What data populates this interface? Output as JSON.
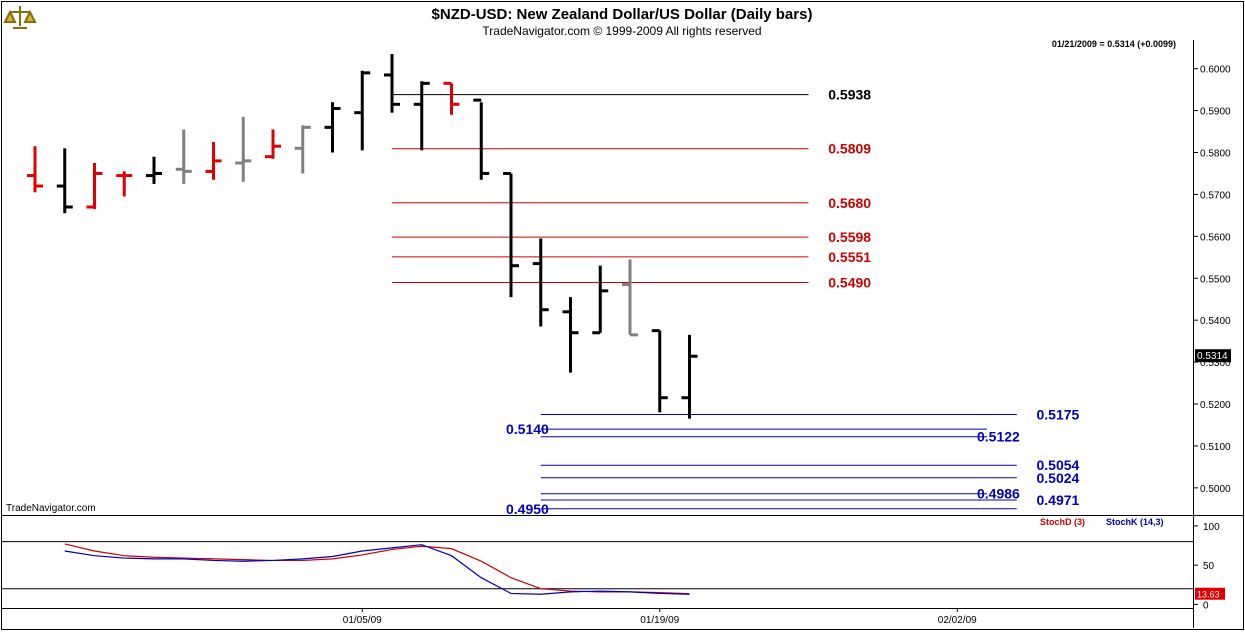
{
  "header": {
    "title": "$NZD-USD:  New Zealand Dollar/US Dollar  (Daily bars)",
    "subtitle": "TradeNavigator.com © 1999-2009 All rights reserved",
    "quote_info": "01/21/2009 = 0.5314 (+0.0099)",
    "watermark": "TradeNavigator.com",
    "logo_icon": "scales-logo-icon"
  },
  "colors": {
    "up": "#000000",
    "down": "#e00000",
    "neutral": "#808080",
    "fib_black": "#000000",
    "fib_red": "#cc0000",
    "fib_blue": "#0000bb",
    "stoch_d": "#cc0000",
    "stoch_k": "#0000bb"
  },
  "chart_data": [
    {
      "type": "ohlc",
      "instrument": "$NZD-USD",
      "ylim": [
        0.494,
        0.6035
      ],
      "y_ticks": [
        "0.6000",
        "0.5900",
        "0.5800",
        "0.5700",
        "0.5600",
        "0.5500",
        "0.5400",
        "0.5300",
        "0.5200",
        "0.5100",
        "0.5000"
      ],
      "last_price_label": "0.5314",
      "x_tick_labels": [
        {
          "bar": 11,
          "label": "01/05/09"
        },
        {
          "bar": 21,
          "label": "01/19/09"
        },
        {
          "bar": 31,
          "label": "02/02/09"
        }
      ],
      "bars": [
        {
          "o": 0.5745,
          "h": 0.5815,
          "l": 0.5705,
          "c": 0.572,
          "color": "down"
        },
        {
          "o": 0.572,
          "h": 0.581,
          "l": 0.5655,
          "c": 0.567,
          "color": "up"
        },
        {
          "o": 0.567,
          "h": 0.5775,
          "l": 0.5665,
          "c": 0.575,
          "color": "down"
        },
        {
          "o": 0.5745,
          "h": 0.5755,
          "l": 0.5695,
          "c": 0.5745,
          "color": "down"
        },
        {
          "o": 0.5745,
          "h": 0.579,
          "l": 0.5725,
          "c": 0.575,
          "color": "up"
        },
        {
          "o": 0.576,
          "h": 0.5855,
          "l": 0.5725,
          "c": 0.5755,
          "color": "neutral"
        },
        {
          "o": 0.5755,
          "h": 0.5825,
          "l": 0.5735,
          "c": 0.578,
          "color": "down"
        },
        {
          "o": 0.5775,
          "h": 0.5885,
          "l": 0.573,
          "c": 0.578,
          "color": "neutral"
        },
        {
          "o": 0.579,
          "h": 0.5855,
          "l": 0.5785,
          "c": 0.5815,
          "color": "down"
        },
        {
          "o": 0.581,
          "h": 0.5865,
          "l": 0.575,
          "c": 0.586,
          "color": "neutral"
        },
        {
          "o": 0.586,
          "h": 0.592,
          "l": 0.58,
          "c": 0.5905,
          "color": "up"
        },
        {
          "o": 0.5895,
          "h": 0.5995,
          "l": 0.5805,
          "c": 0.599,
          "color": "up"
        },
        {
          "o": 0.5985,
          "h": 0.6035,
          "l": 0.5895,
          "c": 0.5915,
          "color": "up"
        },
        {
          "o": 0.5915,
          "h": 0.597,
          "l": 0.5805,
          "c": 0.5965,
          "color": "up"
        },
        {
          "o": 0.5965,
          "h": 0.5965,
          "l": 0.589,
          "c": 0.5915,
          "color": "down"
        },
        {
          "o": 0.5925,
          "h": 0.592,
          "l": 0.5735,
          "c": 0.575,
          "color": "up"
        },
        {
          "o": 0.575,
          "h": 0.575,
          "l": 0.5455,
          "c": 0.553,
          "color": "up"
        },
        {
          "o": 0.5535,
          "h": 0.5595,
          "l": 0.5385,
          "c": 0.5425,
          "color": "up"
        },
        {
          "o": 0.542,
          "h": 0.5455,
          "l": 0.5275,
          "c": 0.537,
          "color": "up"
        },
        {
          "o": 0.537,
          "h": 0.553,
          "l": 0.537,
          "c": 0.547,
          "color": "up"
        },
        {
          "o": 0.5485,
          "h": 0.5545,
          "l": 0.5365,
          "c": 0.5365,
          "color": "neutral"
        },
        {
          "o": 0.5375,
          "h": 0.5375,
          "l": 0.518,
          "c": 0.5215,
          "color": "up"
        },
        {
          "o": 0.5215,
          "h": 0.5365,
          "l": 0.5165,
          "c": 0.5314,
          "color": "up"
        }
      ],
      "levels": [
        {
          "value": 0.5938,
          "label": "0.5938",
          "color": "fib_black",
          "from_bar": 12,
          "to_bar": 26,
          "label_bar": 27
        },
        {
          "value": 0.5809,
          "label": "0.5809",
          "color": "fib_red",
          "from_bar": 12,
          "to_bar": 26,
          "label_bar": 27
        },
        {
          "value": 0.568,
          "label": "0.5680",
          "color": "fib_red",
          "from_bar": 12,
          "to_bar": 26,
          "label_bar": 27
        },
        {
          "value": 0.5598,
          "label": "0.5598",
          "color": "fib_red",
          "from_bar": 12,
          "to_bar": 26,
          "label_bar": 27
        },
        {
          "value": 0.5551,
          "label": "0.5551",
          "color": "fib_red",
          "from_bar": 12,
          "to_bar": 26,
          "label_bar": 27
        },
        {
          "value": 0.549,
          "label": "0.5490",
          "color": "fib_red",
          "from_bar": 12,
          "to_bar": 26,
          "label_bar": 27
        },
        {
          "value": 0.5175,
          "label": "0.5175",
          "color": "fib_blue",
          "from_bar": 17,
          "to_bar": 33,
          "label_bar": 34
        },
        {
          "value": 0.514,
          "label": "0.5140",
          "color": "fib_blue",
          "from_bar": 17,
          "to_bar": 32,
          "label_bar": 16
        },
        {
          "value": 0.5122,
          "label": "0.5122",
          "color": "fib_blue",
          "from_bar": 17,
          "to_bar": 32,
          "label_bar": 32
        },
        {
          "value": 0.5054,
          "label": "0.5054",
          "color": "fib_blue",
          "from_bar": 17,
          "to_bar": 33,
          "label_bar": 34
        },
        {
          "value": 0.5024,
          "label": "0.5024",
          "color": "fib_blue",
          "from_bar": 17,
          "to_bar": 33,
          "label_bar": 34
        },
        {
          "value": 0.4986,
          "label": "0.4986",
          "color": "fib_blue",
          "from_bar": 17,
          "to_bar": 32,
          "label_bar": 32
        },
        {
          "value": 0.4971,
          "label": "0.4971",
          "color": "fib_blue",
          "from_bar": 17,
          "to_bar": 33,
          "label_bar": 34
        },
        {
          "value": 0.495,
          "label": "0.4950",
          "color": "fib_blue",
          "from_bar": 17,
          "to_bar": 33,
          "label_bar": 16
        }
      ]
    },
    {
      "type": "line",
      "indicator": "stochastic",
      "ylim": [
        -2,
        110
      ],
      "y_ticks": [
        "100",
        "50",
        "0"
      ],
      "guide_levels": [
        80,
        20
      ],
      "last_value_label": "13.63",
      "series": [
        {
          "name": "StochD (3)",
          "color": "stoch_d",
          "values": [
            null,
            77,
            68,
            62,
            60,
            59,
            58,
            57,
            56,
            56,
            58,
            63,
            70,
            74,
            71,
            55,
            34,
            20,
            17,
            16,
            16,
            15,
            13.63
          ]
        },
        {
          "name": "StochK (14,3)",
          "color": "stoch_k",
          "values": [
            null,
            68,
            62,
            59,
            58,
            58,
            56,
            55,
            56,
            58,
            61,
            68,
            72,
            76,
            62,
            34,
            14,
            13,
            16,
            17,
            16,
            14,
            13
          ]
        }
      ]
    }
  ]
}
